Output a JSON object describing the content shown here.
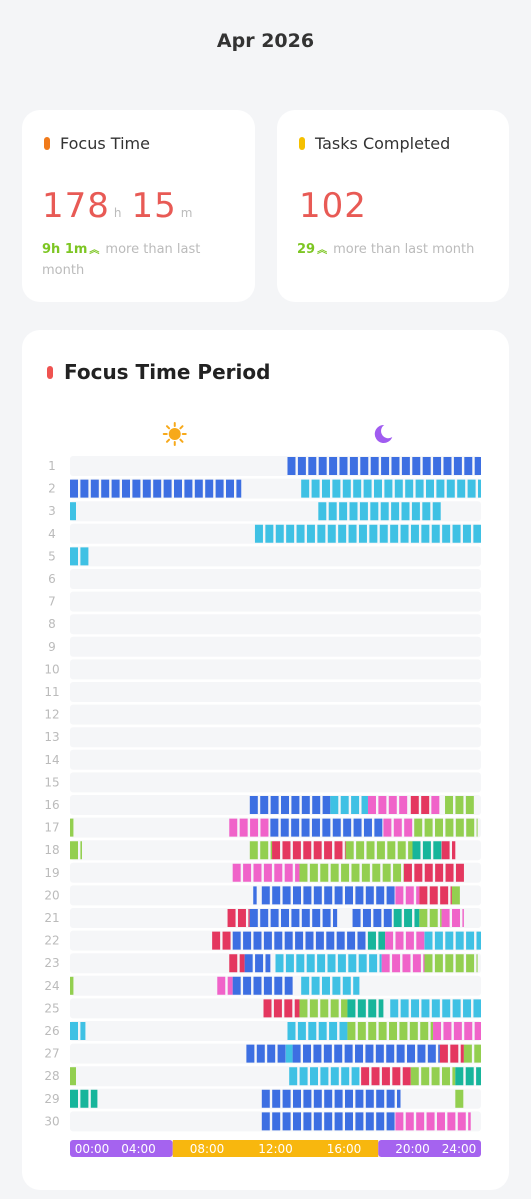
{
  "header": {
    "title": "Apr 2026"
  },
  "cards": [
    {
      "title": "Focus Time",
      "hours": 178,
      "hours_unit": "h",
      "minutes": 15,
      "minutes_unit": "m",
      "delta": "9h 1m",
      "delta_note": "more than last month"
    },
    {
      "title": "Tasks Completed",
      "value": 102,
      "delta": 29,
      "delta_note": "more than last month"
    }
  ],
  "chart_data": {
    "type": "timeline",
    "title": "Focus Time Period",
    "xlim": [
      0,
      24
    ],
    "xticks": [
      {
        "value": 0,
        "label": "00:00"
      },
      {
        "value": 4,
        "label": "04:00"
      },
      {
        "value": 8,
        "label": "08:00"
      },
      {
        "value": 12,
        "label": "12:00"
      },
      {
        "value": 16,
        "label": "16:00"
      },
      {
        "value": 20,
        "label": "20:00"
      },
      {
        "value": 24,
        "label": "24:00"
      }
    ],
    "day_band": [
      6,
      18
    ],
    "night_color": "#a563ef",
    "day_color": "#f8b70e",
    "categories": [
      "1",
      "2",
      "3",
      "4",
      "5",
      "6",
      "7",
      "8",
      "9",
      "10",
      "11",
      "12",
      "13",
      "14",
      "15",
      "16",
      "17",
      "18",
      "19",
      "20",
      "21",
      "22",
      "23",
      "24",
      "25",
      "26",
      "27",
      "28",
      "29",
      "30"
    ],
    "spans": [
      [
        [
          12.7,
          24,
          "#3d6fe2"
        ]
      ],
      [
        [
          0,
          10,
          "#3d6fe2"
        ],
        [
          13.5,
          24,
          "#3fc1e4"
        ]
      ],
      [
        [
          0,
          0.35,
          "#3fc1e4"
        ],
        [
          14.5,
          21.7,
          "#3fc1e4"
        ]
      ],
      [
        [
          10.8,
          24,
          "#3fc1e4"
        ]
      ],
      [
        [
          0,
          1.15,
          "#3fc1e4"
        ]
      ],
      [],
      [],
      [],
      [],
      [],
      [],
      [],
      [],
      [],
      [],
      [
        [
          10.5,
          15.2,
          "#3d6fe2"
        ],
        [
          15.2,
          17.4,
          "#3fc1e4"
        ],
        [
          17.4,
          19.7,
          "#f063c9"
        ],
        [
          19.9,
          21.1,
          "#e4375f"
        ],
        [
          21.1,
          21.7,
          "#f063c9"
        ],
        [
          21.9,
          23.7,
          "#93cf50"
        ]
      ],
      [
        [
          0,
          0.2,
          "#93cf50"
        ],
        [
          9.3,
          11.7,
          "#f063c9"
        ],
        [
          11.7,
          18.3,
          "#3d6fe2"
        ],
        [
          18.3,
          20.1,
          "#f063c9"
        ],
        [
          20.1,
          23.8,
          "#93cf50"
        ]
      ],
      [
        [
          0,
          0.7,
          "#93cf50"
        ],
        [
          10.5,
          11.8,
          "#93cf50"
        ],
        [
          11.8,
          16.1,
          "#e4375f"
        ],
        [
          16.1,
          20,
          "#93cf50"
        ],
        [
          20,
          21.7,
          "#17b59b"
        ],
        [
          21.7,
          22.5,
          "#e4375f"
        ]
      ],
      [
        [
          9.5,
          13.4,
          "#f063c9"
        ],
        [
          13.4,
          19.5,
          "#93cf50"
        ],
        [
          19.5,
          23.1,
          "#e4375f"
        ]
      ],
      [
        [
          10.7,
          10.9,
          "#3d6fe2"
        ],
        [
          11.2,
          19,
          "#3d6fe2"
        ],
        [
          19,
          20.4,
          "#f063c9"
        ],
        [
          20.4,
          22.3,
          "#e4375f"
        ],
        [
          22.3,
          22.9,
          "#93cf50"
        ]
      ],
      [
        [
          9.2,
          10.5,
          "#e4375f"
        ],
        [
          10.5,
          15.6,
          "#3d6fe2"
        ],
        [
          16.5,
          18.9,
          "#3d6fe2"
        ],
        [
          18.9,
          20.4,
          "#17b59b"
        ],
        [
          20.4,
          21.7,
          "#93cf50"
        ],
        [
          21.7,
          23,
          "#f063c9"
        ]
      ],
      [
        [
          8.3,
          9.5,
          "#e4375f"
        ],
        [
          9.5,
          17.4,
          "#3d6fe2"
        ],
        [
          17.4,
          18.4,
          "#17b59b"
        ],
        [
          18.4,
          20.7,
          "#f063c9"
        ],
        [
          20.7,
          24,
          "#3fc1e4"
        ]
      ],
      [
        [
          9.3,
          10.2,
          "#e4375f"
        ],
        [
          10.2,
          11.7,
          "#3d6fe2"
        ],
        [
          12,
          18.2,
          "#3fc1e4"
        ],
        [
          18.2,
          20.7,
          "#f063c9"
        ],
        [
          20.7,
          23.8,
          "#93cf50"
        ]
      ],
      [
        [
          0,
          0.2,
          "#93cf50"
        ],
        [
          8.6,
          9.5,
          "#f063c9"
        ],
        [
          9.5,
          13,
          "#3d6fe2"
        ],
        [
          13.5,
          16.9,
          "#3fc1e4"
        ]
      ],
      [
        [
          11.3,
          13.4,
          "#e4375f"
        ],
        [
          13.4,
          16.2,
          "#93cf50"
        ],
        [
          16.2,
          18.3,
          "#17b59b"
        ],
        [
          18.7,
          24,
          "#3fc1e4"
        ]
      ],
      [
        [
          0,
          0.9,
          "#3fc1e4"
        ],
        [
          12.7,
          16.2,
          "#3fc1e4"
        ],
        [
          16.2,
          21.2,
          "#93cf50"
        ],
        [
          21.2,
          24,
          "#f063c9"
        ]
      ],
      [
        [
          10.3,
          12.6,
          "#3d6fe2"
        ],
        [
          12.6,
          13,
          "#3fc1e4"
        ],
        [
          13,
          21.6,
          "#3d6fe2"
        ],
        [
          21.6,
          23,
          "#e4375f"
        ],
        [
          23,
          24,
          "#93cf50"
        ]
      ],
      [
        [
          0,
          0.35,
          "#93cf50"
        ],
        [
          12.8,
          16.9,
          "#3fc1e4"
        ],
        [
          17,
          19.9,
          "#e4375f"
        ],
        [
          19.9,
          22.5,
          "#93cf50"
        ],
        [
          22.5,
          24,
          "#17b59b"
        ]
      ],
      [
        [
          0,
          1.6,
          "#17b59b"
        ],
        [
          11.2,
          19.3,
          "#3d6fe2"
        ],
        [
          22.5,
          23.1,
          "#93cf50"
        ]
      ],
      [
        [
          11.2,
          19,
          "#3d6fe2"
        ],
        [
          19,
          23.4,
          "#f063c9"
        ]
      ]
    ]
  }
}
